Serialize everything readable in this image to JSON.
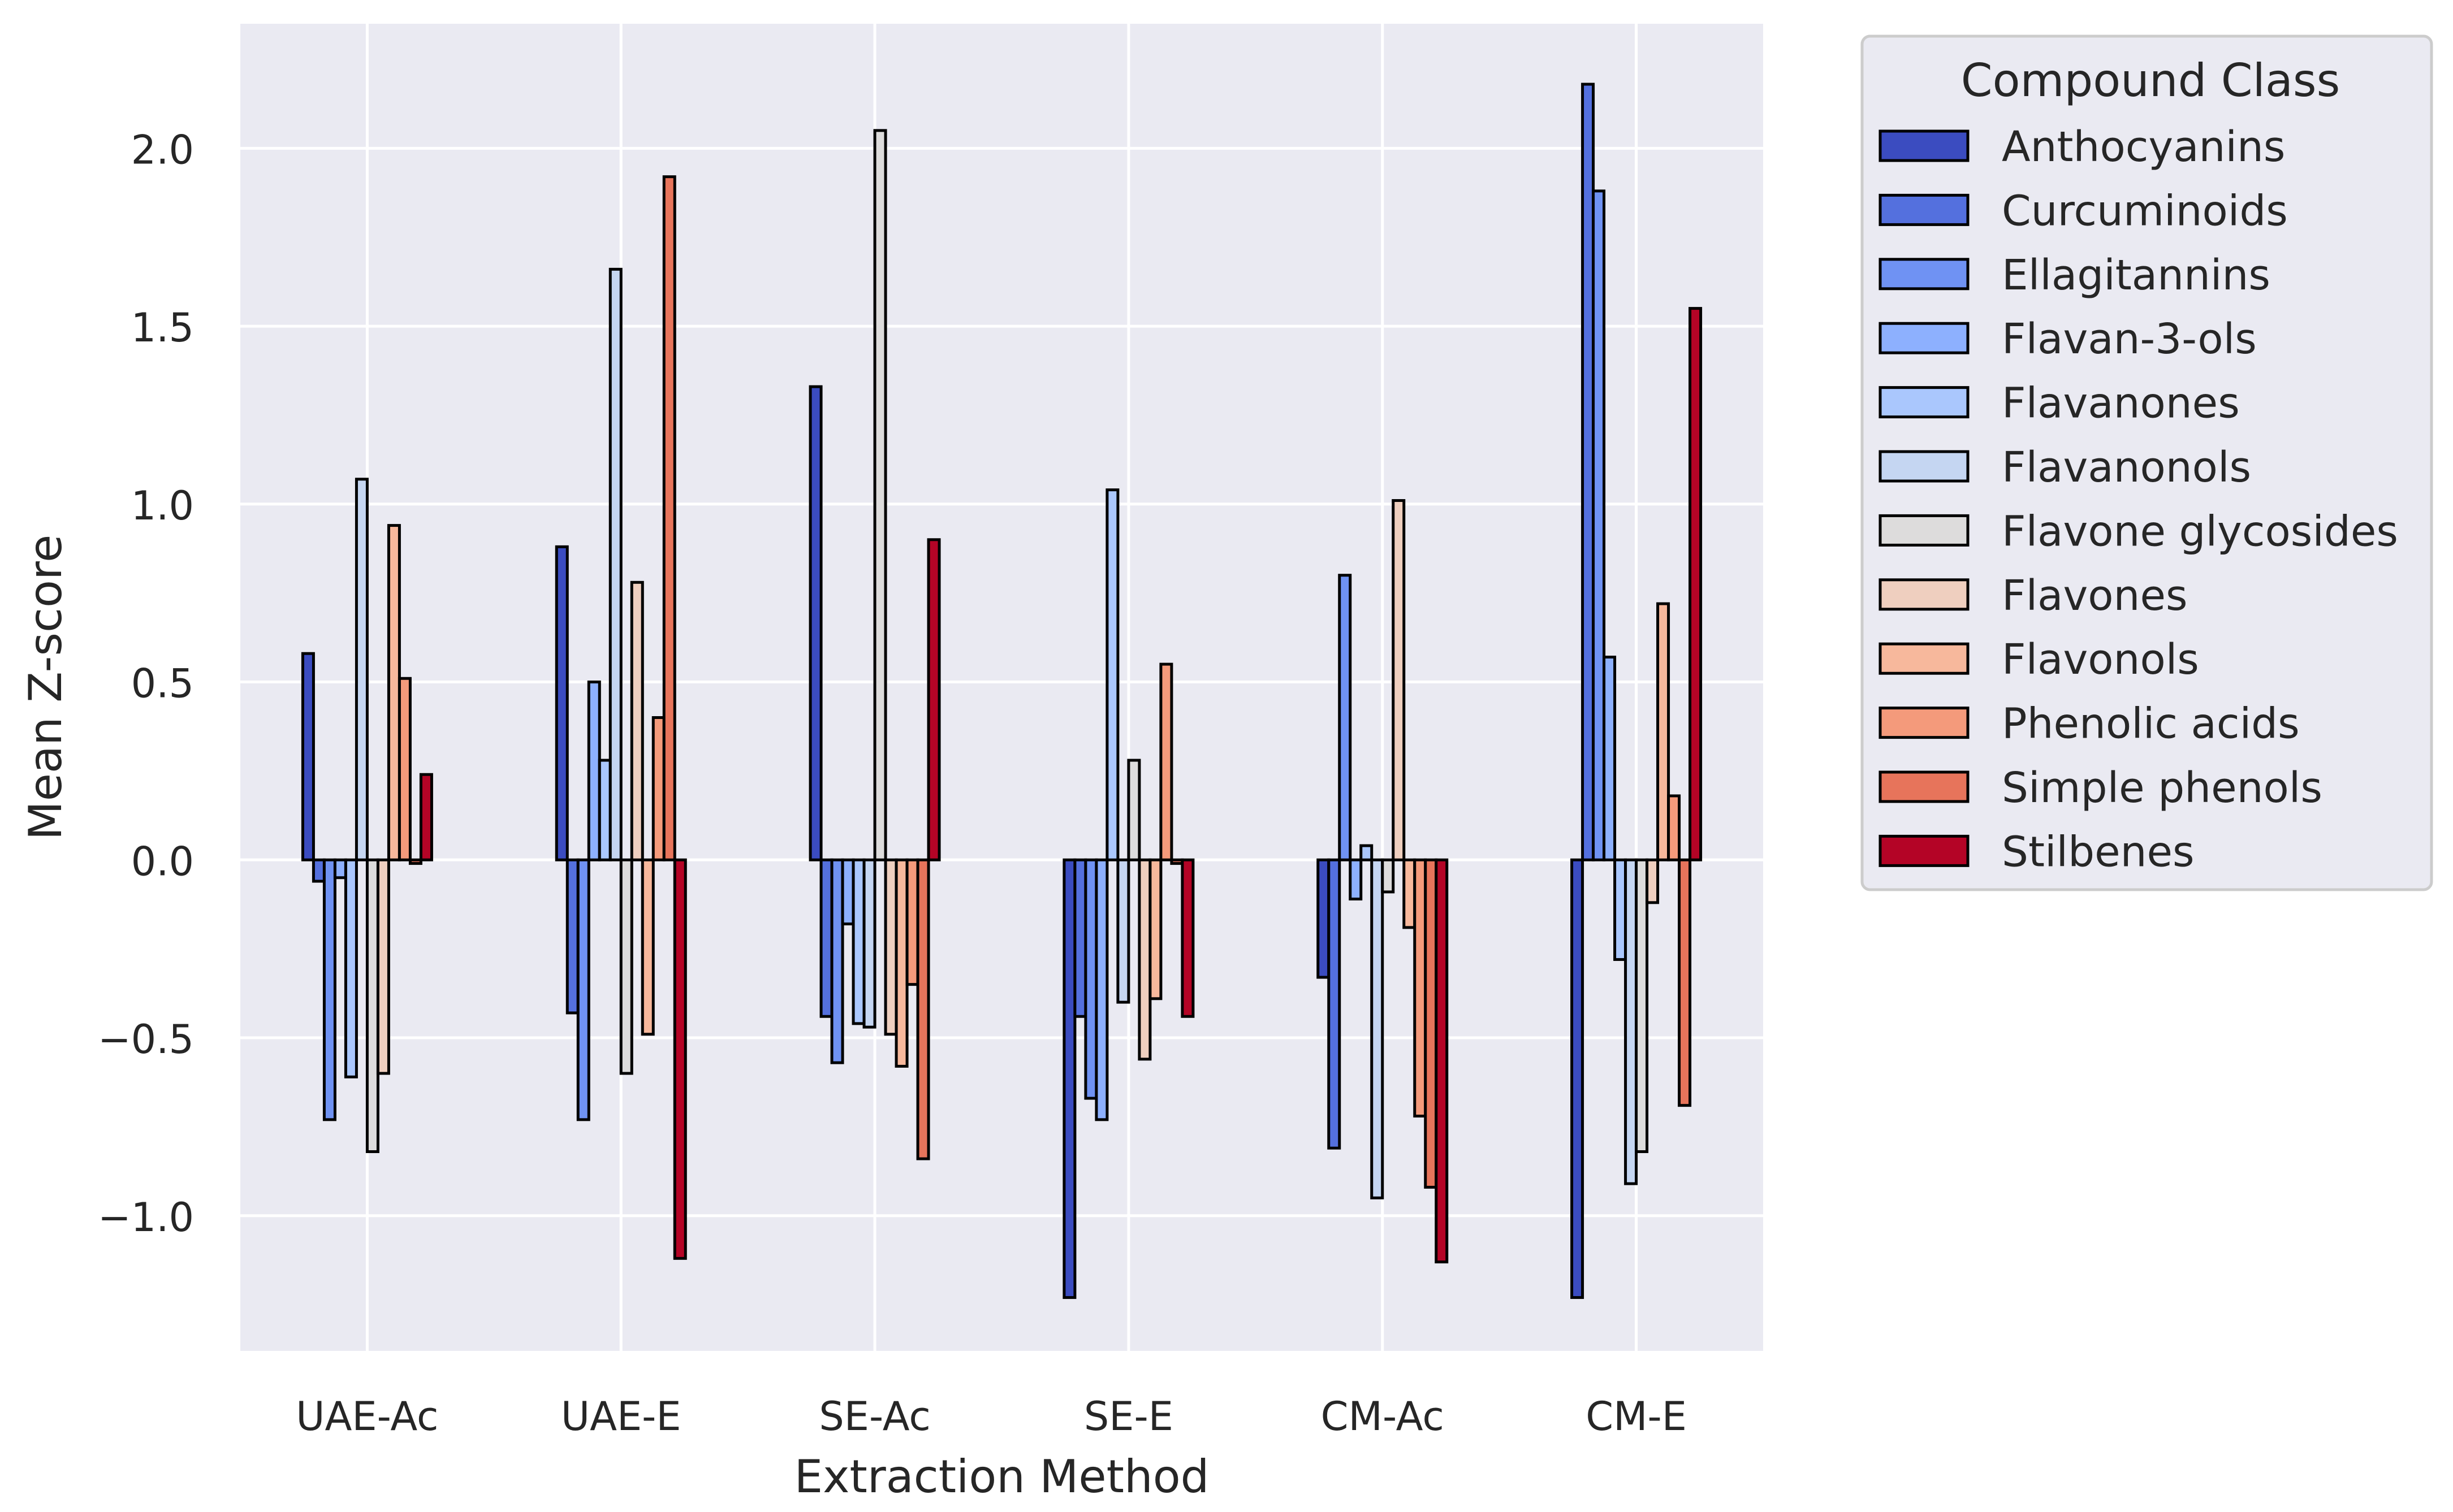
{
  "chart_data": {
    "type": "bar",
    "title": "",
    "xlabel": "Extraction Method",
    "ylabel": "Mean Z-score",
    "ylim": [
      -1.38,
      2.35
    ],
    "yticks": [
      -1.0,
      -0.5,
      0.0,
      0.5,
      1.0,
      1.5,
      2.0
    ],
    "ytick_labels": [
      "−1.0",
      "−0.5",
      "0.0",
      "0.5",
      "1.0",
      "1.5",
      "2.0"
    ],
    "grid": true,
    "legend_title": "Compound Class",
    "legend_position": "outside-right",
    "categories": [
      "UAE-Ac",
      "UAE-E",
      "SE-Ac",
      "SE-E",
      "CM-Ac",
      "CM-E"
    ],
    "series": [
      {
        "name": "Anthocyanins",
        "color": "#3b4cc0",
        "values": [
          0.58,
          0.88,
          1.33,
          -1.23,
          -0.33,
          -1.23
        ]
      },
      {
        "name": "Curcuminoids",
        "color": "#5470de",
        "values": [
          -0.06,
          -0.43,
          -0.44,
          -0.44,
          -0.81,
          2.18
        ]
      },
      {
        "name": "Ellagitannins",
        "color": "#6f92f3",
        "values": [
          -0.73,
          -0.73,
          -0.57,
          -0.67,
          0.8,
          1.88
        ]
      },
      {
        "name": "Flavan-3-ols",
        "color": "#8db0fe",
        "values": [
          -0.05,
          0.5,
          -0.18,
          -0.73,
          -0.11,
          0.57
        ]
      },
      {
        "name": "Flavanones",
        "color": "#aac7fd",
        "values": [
          -0.61,
          0.28,
          -0.46,
          1.04,
          0.04,
          -0.28
        ]
      },
      {
        "name": "Flavanonols",
        "color": "#c5d6f2",
        "values": [
          1.07,
          1.66,
          -0.47,
          -0.4,
          -0.95,
          -0.91
        ]
      },
      {
        "name": "Flavone glycosides",
        "color": "#dddcdc",
        "values": [
          -0.82,
          -0.6,
          2.05,
          0.28,
          -0.09,
          -0.82
        ]
      },
      {
        "name": "Flavones",
        "color": "#efcfbf",
        "values": [
          -0.6,
          0.78,
          -0.49,
          -0.56,
          1.01,
          -0.12
        ]
      },
      {
        "name": "Flavonols",
        "color": "#f7b89c",
        "values": [
          0.94,
          -0.49,
          -0.58,
          -0.39,
          -0.19,
          0.72
        ]
      },
      {
        "name": "Phenolic acids",
        "color": "#f49a7b",
        "values": [
          0.51,
          0.4,
          -0.35,
          0.55,
          -0.72,
          0.18
        ]
      },
      {
        "name": "Simple phenols",
        "color": "#e7745b",
        "values": [
          -0.01,
          1.92,
          -0.84,
          -0.01,
          -0.92,
          -0.69
        ]
      },
      {
        "name": "Stilbenes",
        "color": "#b40426",
        "values": [
          0.24,
          -1.12,
          0.9,
          -0.44,
          -1.13,
          1.55
        ]
      }
    ]
  }
}
